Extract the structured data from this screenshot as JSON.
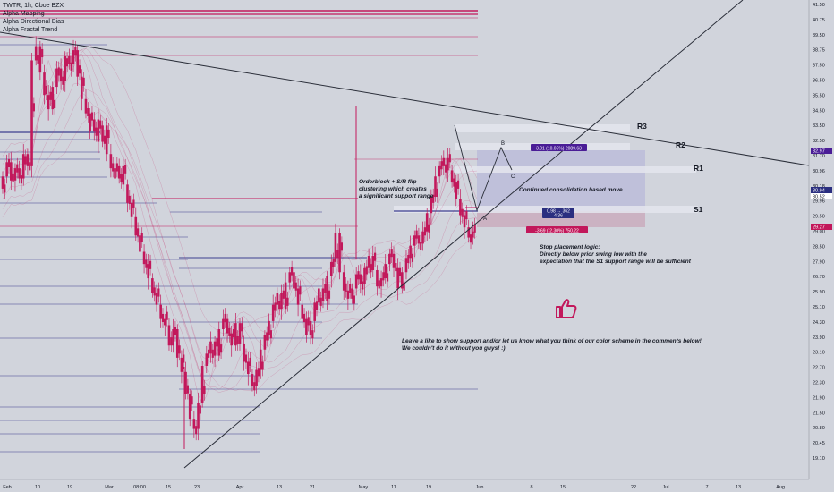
{
  "legend": {
    "symbol": "TWTR, 1h, Cboe BZX",
    "indicators": [
      "Alpha Mapping",
      "Alpha Directional Bias",
      "Alpha Fractal Trend"
    ]
  },
  "colors": {
    "background": "#d1d4dc",
    "candle": "#c2185b",
    "trendline": "#2a2e39",
    "zone_fill": "#b8b9d9",
    "zone_band": "#e4e5ed",
    "stop_zone": "#c9a9bb",
    "support_line": "#3d3f8f",
    "resistance_line": "#c2185b",
    "badge_purple": "#4a1d96",
    "badge_navy": "#2b2f80",
    "badge_red": "#c2185b",
    "price_tag_purple": "#4a1d96",
    "price_tag_red": "#c2185b",
    "like_icon": "#c2185b"
  },
  "chart_data": {
    "type": "candlestick",
    "title": "TWTR, 1h, Cboe BZX",
    "x_ticks": [
      "Feb",
      "10",
      "19",
      "Mar",
      "08:00",
      "15",
      "23",
      "Apr",
      "13",
      "21",
      "May",
      "11",
      "19",
      "Jun",
      "8",
      "15",
      "22",
      "Jul",
      "7",
      "13",
      "Aug"
    ],
    "y_ticks": [
      "41.50",
      "40.75",
      "39.50",
      "38.75",
      "37.50",
      "36.50",
      "35.50",
      "34.50",
      "33.50",
      "32.50",
      "31.70",
      "30.96",
      "30.18",
      "29.96",
      "29.50",
      "29.00",
      "28.50",
      "27.90",
      "26.70",
      "25.90",
      "25.10",
      "24.30",
      "23.90",
      "23.10",
      "22.70",
      "22.30",
      "21.90",
      "21.50",
      "20.80",
      "20.45",
      "19.10"
    ],
    "ylim": [
      19.1,
      41.5
    ],
    "price_tags": [
      {
        "label": "32.97",
        "style": "purple"
      },
      {
        "label": "30.94",
        "style": "navy"
      },
      {
        "label": "30.52",
        "style": "plain"
      },
      {
        "label": "29.27",
        "style": "red"
      }
    ],
    "levels": [
      {
        "name": "R3",
        "price": 34.2
      },
      {
        "name": "R2",
        "price": 33.3
      },
      {
        "name": "R1",
        "price": 31.9
      },
      {
        "name": "S1",
        "price": 29.85
      }
    ],
    "swing_points": [
      "A",
      "B",
      "C"
    ],
    "measure_badges": [
      {
        "text": "3.01 (10.05%) 2089.63",
        "style": "purple"
      },
      {
        "text": "0.98 → 362",
        "style": "navy"
      },
      {
        "text": "4.36",
        "style": "navy"
      },
      {
        "text": "-3.69 (-2.30%) 750.22",
        "style": "red"
      }
    ],
    "annotations": {
      "orderblock": [
        "Orderblock + S/R flip",
        "clustering which creates",
        "a significant support range"
      ],
      "consolidation": "Continued consolidation based move",
      "stop": [
        "Stop placement logic:",
        "Directly below prior swing low with the",
        "expectation that the S1 support range will be sufficient"
      ],
      "cta": [
        "Leave a like to show support and/or let us know what you think of our color scheme in the comments below!",
        "We couldn't do it without you guys! :)"
      ]
    },
    "price_path": [
      32.5,
      33.1,
      33.8,
      32.9,
      33.5,
      33.0,
      34.2,
      33.6,
      38.8,
      39.5,
      38.2,
      37.1,
      36.4,
      37.5,
      38.4,
      37.8,
      39.0,
      38.6,
      39.3,
      38.0,
      36.9,
      36.2,
      35.3,
      35.9,
      34.8,
      35.6,
      34.2,
      33.5,
      33.0,
      33.6,
      32.7,
      31.8,
      31.1,
      30.2,
      29.4,
      28.8,
      28.1,
      27.4,
      26.8,
      26.1,
      25.8,
      24.8,
      25.6,
      24.2,
      23.5,
      22.4,
      21.2,
      20.7,
      22.0,
      23.8,
      24.4,
      25.0,
      24.3,
      25.6,
      26.1,
      25.4,
      24.8,
      25.9,
      24.9,
      24.0,
      23.4,
      22.8,
      23.6,
      24.6,
      25.3,
      26.0,
      26.8,
      27.4,
      26.6,
      27.9,
      28.4,
      27.6,
      26.8,
      26.1,
      25.3,
      26.0,
      26.9,
      27.6,
      27.0,
      28.2,
      28.9,
      30.3,
      28.4,
      27.5,
      27.1,
      27.6,
      28.3,
      27.8,
      28.6,
      29.2,
      28.5,
      27.7,
      28.1,
      28.8,
      29.3,
      28.6,
      27.6,
      28.4,
      29.1,
      29.7,
      30.2,
      29.8,
      30.4,
      31.3,
      32.1,
      33.1,
      33.6,
      34.0,
      33.4,
      32.8,
      32.0,
      31.2,
      30.6,
      30.1,
      30.4
    ]
  }
}
